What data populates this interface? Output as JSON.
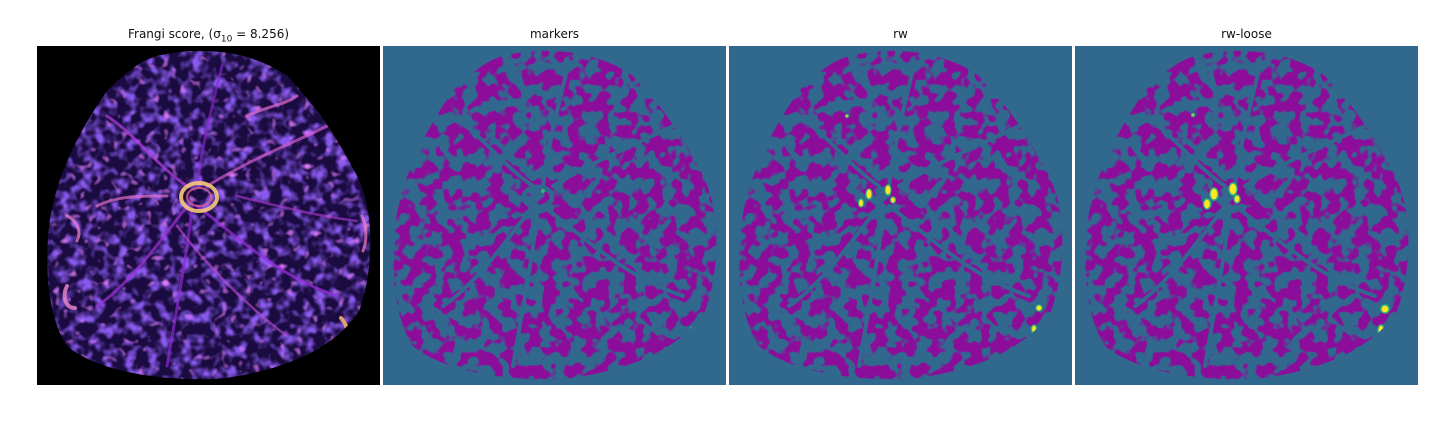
{
  "figure": {
    "panels": [
      {
        "id": "frangi",
        "title": "Frangi score, (σ",
        "title_sub": "10",
        "title_tail": " = 8.256)",
        "colormap": "magma"
      },
      {
        "id": "markers",
        "title": "markers"
      },
      {
        "id": "rw",
        "title": "rw"
      },
      {
        "id": "rw-loose",
        "title": "rw-loose"
      }
    ],
    "colors": {
      "background_label": "#31688e",
      "region_label": "#440154",
      "highlight_label": "#fde725",
      "highlight_edge": "#35b779",
      "frangi_bg": "#000000",
      "frangi_low": "#2c1160",
      "frangi_mid": "#6a1fd0",
      "frangi_high": "#fcfdbf"
    }
  }
}
